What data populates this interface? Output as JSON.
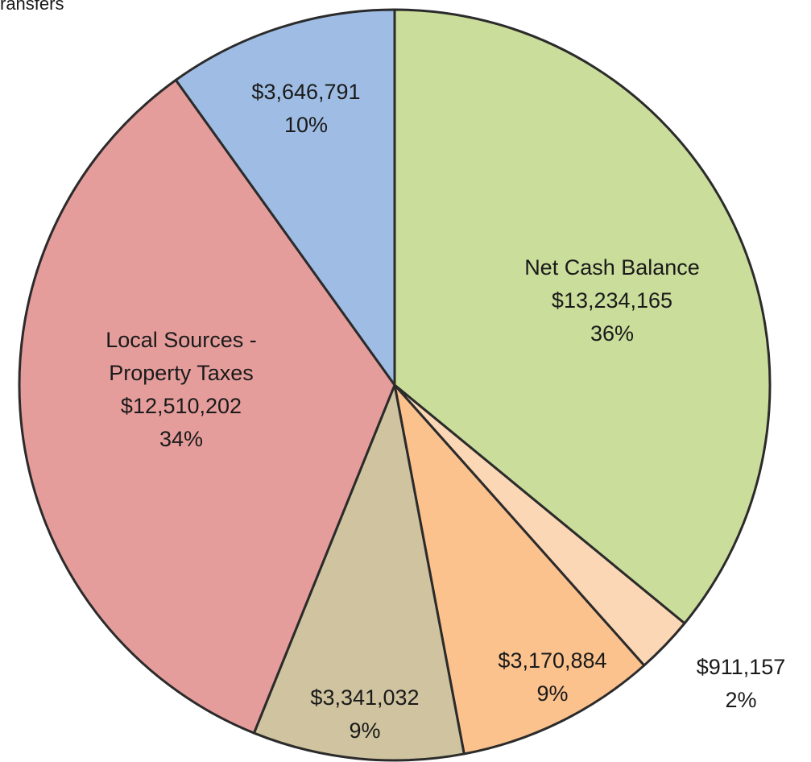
{
  "chart_data": {
    "type": "pie",
    "annotation": "ransfers",
    "categories": [
      "Net Cash Balance",
      null,
      null,
      null,
      "Local Sources - Property Taxes",
      null
    ],
    "values": [
      13234165,
      911157,
      3170884,
      3341032,
      12510202,
      3646791
    ],
    "value_labels": [
      "$13,234,165",
      "$911,157",
      "$3,170,884",
      "$3,341,032",
      "$12,510,202",
      "$3,646,791"
    ],
    "percents": [
      36,
      2,
      9,
      9,
      34,
      10
    ],
    "percent_labels": [
      "36%",
      "2%",
      "9%",
      "9%",
      "34%",
      "10%"
    ],
    "colors": [
      "#cadd9b",
      "#fcd7b5",
      "#fbc28e",
      "#cfc49f",
      "#e59d9c",
      "#9fbde4"
    ]
  }
}
